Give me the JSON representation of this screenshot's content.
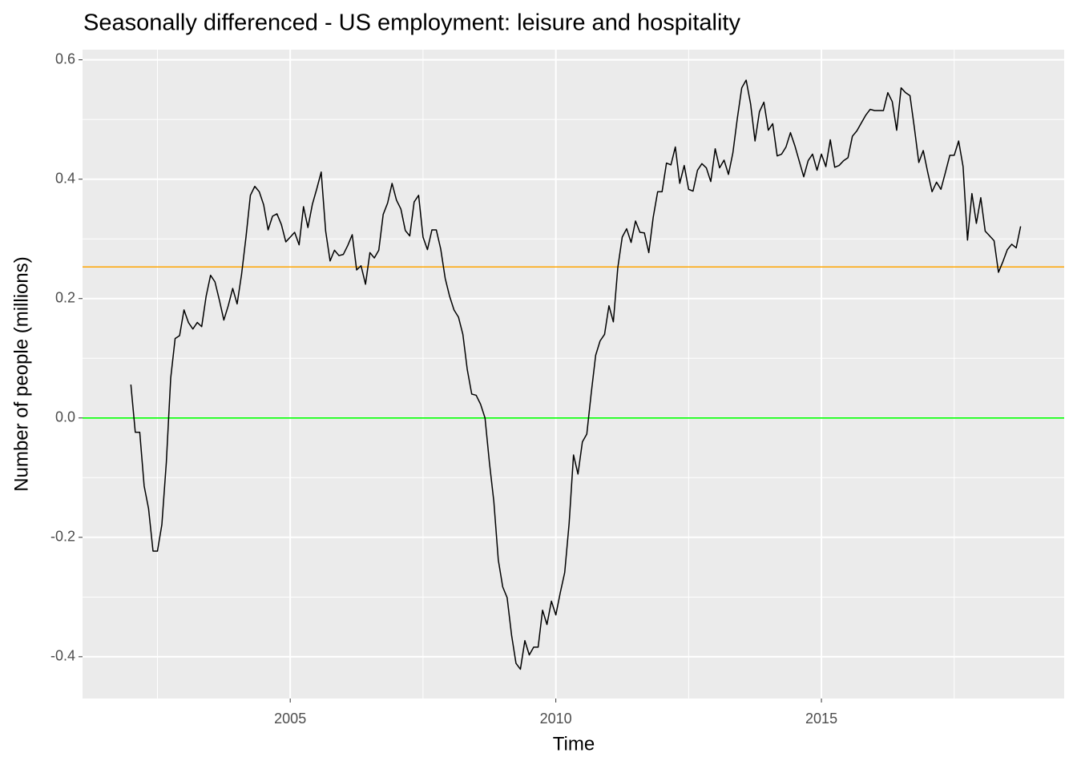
{
  "chart_data": {
    "type": "line",
    "title": "Seasonally differenced - US employment: leisure and hospitality",
    "x_label": "Time",
    "y_label": "Number of people (millions)",
    "color": "#000000",
    "x": [
      2002,
      2002.083,
      2002.167,
      2002.25,
      2002.333,
      2002.417,
      2002.5,
      2002.583,
      2002.667,
      2002.75,
      2002.833,
      2002.917,
      2003,
      2003.083,
      2003.167,
      2003.25,
      2003.333,
      2003.417,
      2003.5,
      2003.583,
      2003.667,
      2003.75,
      2003.833,
      2003.917,
      2004,
      2004.083,
      2004.167,
      2004.25,
      2004.333,
      2004.417,
      2004.5,
      2004.583,
      2004.667,
      2004.75,
      2004.833,
      2004.917,
      2005,
      2005.083,
      2005.167,
      2005.25,
      2005.333,
      2005.417,
      2005.5,
      2005.583,
      2005.667,
      2005.75,
      2005.833,
      2005.917,
      2006,
      2006.083,
      2006.167,
      2006.25,
      2006.333,
      2006.417,
      2006.5,
      2006.583,
      2006.667,
      2006.75,
      2006.833,
      2006.917,
      2007,
      2007.083,
      2007.167,
      2007.25,
      2007.333,
      2007.417,
      2007.5,
      2007.583,
      2007.667,
      2007.75,
      2007.833,
      2007.917,
      2008,
      2008.083,
      2008.167,
      2008.25,
      2008.333,
      2008.417,
      2008.5,
      2008.583,
      2008.667,
      2008.75,
      2008.833,
      2008.917,
      2009,
      2009.083,
      2009.167,
      2009.25,
      2009.333,
      2009.417,
      2009.5,
      2009.583,
      2009.667,
      2009.75,
      2009.833,
      2009.917,
      2010,
      2010.083,
      2010.167,
      2010.25,
      2010.333,
      2010.417,
      2010.5,
      2010.583,
      2010.667,
      2010.75,
      2010.833,
      2010.917,
      2011,
      2011.083,
      2011.167,
      2011.25,
      2011.333,
      2011.417,
      2011.5,
      2011.583,
      2011.667,
      2011.75,
      2011.833,
      2011.917,
      2012,
      2012.083,
      2012.167,
      2012.25,
      2012.333,
      2012.417,
      2012.5,
      2012.583,
      2012.667,
      2012.75,
      2012.833,
      2012.917,
      2013,
      2013.083,
      2013.167,
      2013.25,
      2013.333,
      2013.417,
      2013.5,
      2013.583,
      2013.667,
      2013.75,
      2013.833,
      2013.917,
      2014,
      2014.083,
      2014.167,
      2014.25,
      2014.333,
      2014.417,
      2014.5,
      2014.583,
      2014.667,
      2014.75,
      2014.833,
      2014.917,
      2015,
      2015.083,
      2015.167,
      2015.25,
      2015.333,
      2015.417,
      2015.5,
      2015.583,
      2015.667,
      2015.75,
      2015.833,
      2015.917,
      2016,
      2016.083,
      2016.167,
      2016.25,
      2016.333,
      2016.417,
      2016.5,
      2016.583,
      2016.667,
      2016.75,
      2016.833,
      2016.917,
      2017,
      2017.083,
      2017.167,
      2017.25,
      2017.333,
      2017.417,
      2017.5,
      2017.583,
      2017.667,
      2017.75,
      2017.833,
      2017.917,
      2018,
      2018.083,
      2018.167,
      2018.25,
      2018.333,
      2018.417,
      2018.5,
      2018.583,
      2018.667,
      2018.75
    ],
    "values": [
      0.056,
      -0.024,
      -0.024,
      -0.114,
      -0.152,
      -0.223,
      -0.223,
      -0.179,
      -0.075,
      0.067,
      0.133,
      0.138,
      0.181,
      0.16,
      0.149,
      0.16,
      0.153,
      0.204,
      0.239,
      0.228,
      0.197,
      0.164,
      0.188,
      0.217,
      0.191,
      0.24,
      0.303,
      0.373,
      0.388,
      0.379,
      0.357,
      0.315,
      0.338,
      0.342,
      0.324,
      0.295,
      0.303,
      0.311,
      0.29,
      0.354,
      0.319,
      0.358,
      0.384,
      0.412,
      0.313,
      0.263,
      0.281,
      0.272,
      0.274,
      0.289,
      0.307,
      0.248,
      0.255,
      0.224,
      0.277,
      0.268,
      0.281,
      0.341,
      0.36,
      0.393,
      0.365,
      0.35,
      0.314,
      0.305,
      0.362,
      0.373,
      0.303,
      0.282,
      0.315,
      0.315,
      0.283,
      0.234,
      0.204,
      0.181,
      0.169,
      0.14,
      0.081,
      0.04,
      0.038,
      0.023,
      0.0,
      -0.075,
      -0.14,
      -0.238,
      -0.283,
      -0.301,
      -0.364,
      -0.411,
      -0.421,
      -0.373,
      -0.397,
      -0.384,
      -0.384,
      -0.322,
      -0.346,
      -0.307,
      -0.33,
      -0.293,
      -0.259,
      -0.177,
      -0.062,
      -0.094,
      -0.04,
      -0.027,
      0.042,
      0.105,
      0.129,
      0.14,
      0.188,
      0.161,
      0.252,
      0.303,
      0.317,
      0.294,
      0.33,
      0.311,
      0.31,
      0.277,
      0.336,
      0.379,
      0.379,
      0.427,
      0.424,
      0.454,
      0.393,
      0.423,
      0.383,
      0.38,
      0.415,
      0.426,
      0.419,
      0.396,
      0.451,
      0.419,
      0.432,
      0.408,
      0.444,
      0.502,
      0.553,
      0.566,
      0.526,
      0.464,
      0.513,
      0.529,
      0.482,
      0.493,
      0.439,
      0.442,
      0.454,
      0.478,
      0.456,
      0.43,
      0.404,
      0.431,
      0.442,
      0.415,
      0.442,
      0.421,
      0.466,
      0.42,
      0.423,
      0.431,
      0.436,
      0.472,
      0.481,
      0.494,
      0.507,
      0.517,
      0.515,
      0.515,
      0.515,
      0.545,
      0.53,
      0.482,
      0.553,
      0.545,
      0.54,
      0.486,
      0.428,
      0.448,
      0.412,
      0.379,
      0.395,
      0.383,
      0.411,
      0.44,
      0.44,
      0.464,
      0.421,
      0.298,
      0.376,
      0.326,
      0.369,
      0.313,
      0.305,
      0.297,
      0.244,
      0.262,
      0.282,
      0.291,
      0.285,
      0.321
    ],
    "hlines": [
      {
        "value": 0.253,
        "color": "#ffa500"
      },
      {
        "value": 0,
        "color": "#00ff00"
      }
    ],
    "xlim": [
      2001.09,
      2019.57
    ],
    "ylim": [
      -0.47,
      0.617
    ],
    "xticks": [
      2005,
      2010,
      2015
    ],
    "yticks": [
      -0.4,
      -0.2,
      {
        "value": 0,
        "label": "0.0"
      },
      0.2,
      0.4,
      0.6
    ],
    "xminor": [
      2002.5,
      2007.5,
      2012.5,
      2017.5
    ],
    "yminor": [
      -0.3,
      -0.1,
      0.1,
      0.3,
      0.5
    ],
    "grid": true
  }
}
